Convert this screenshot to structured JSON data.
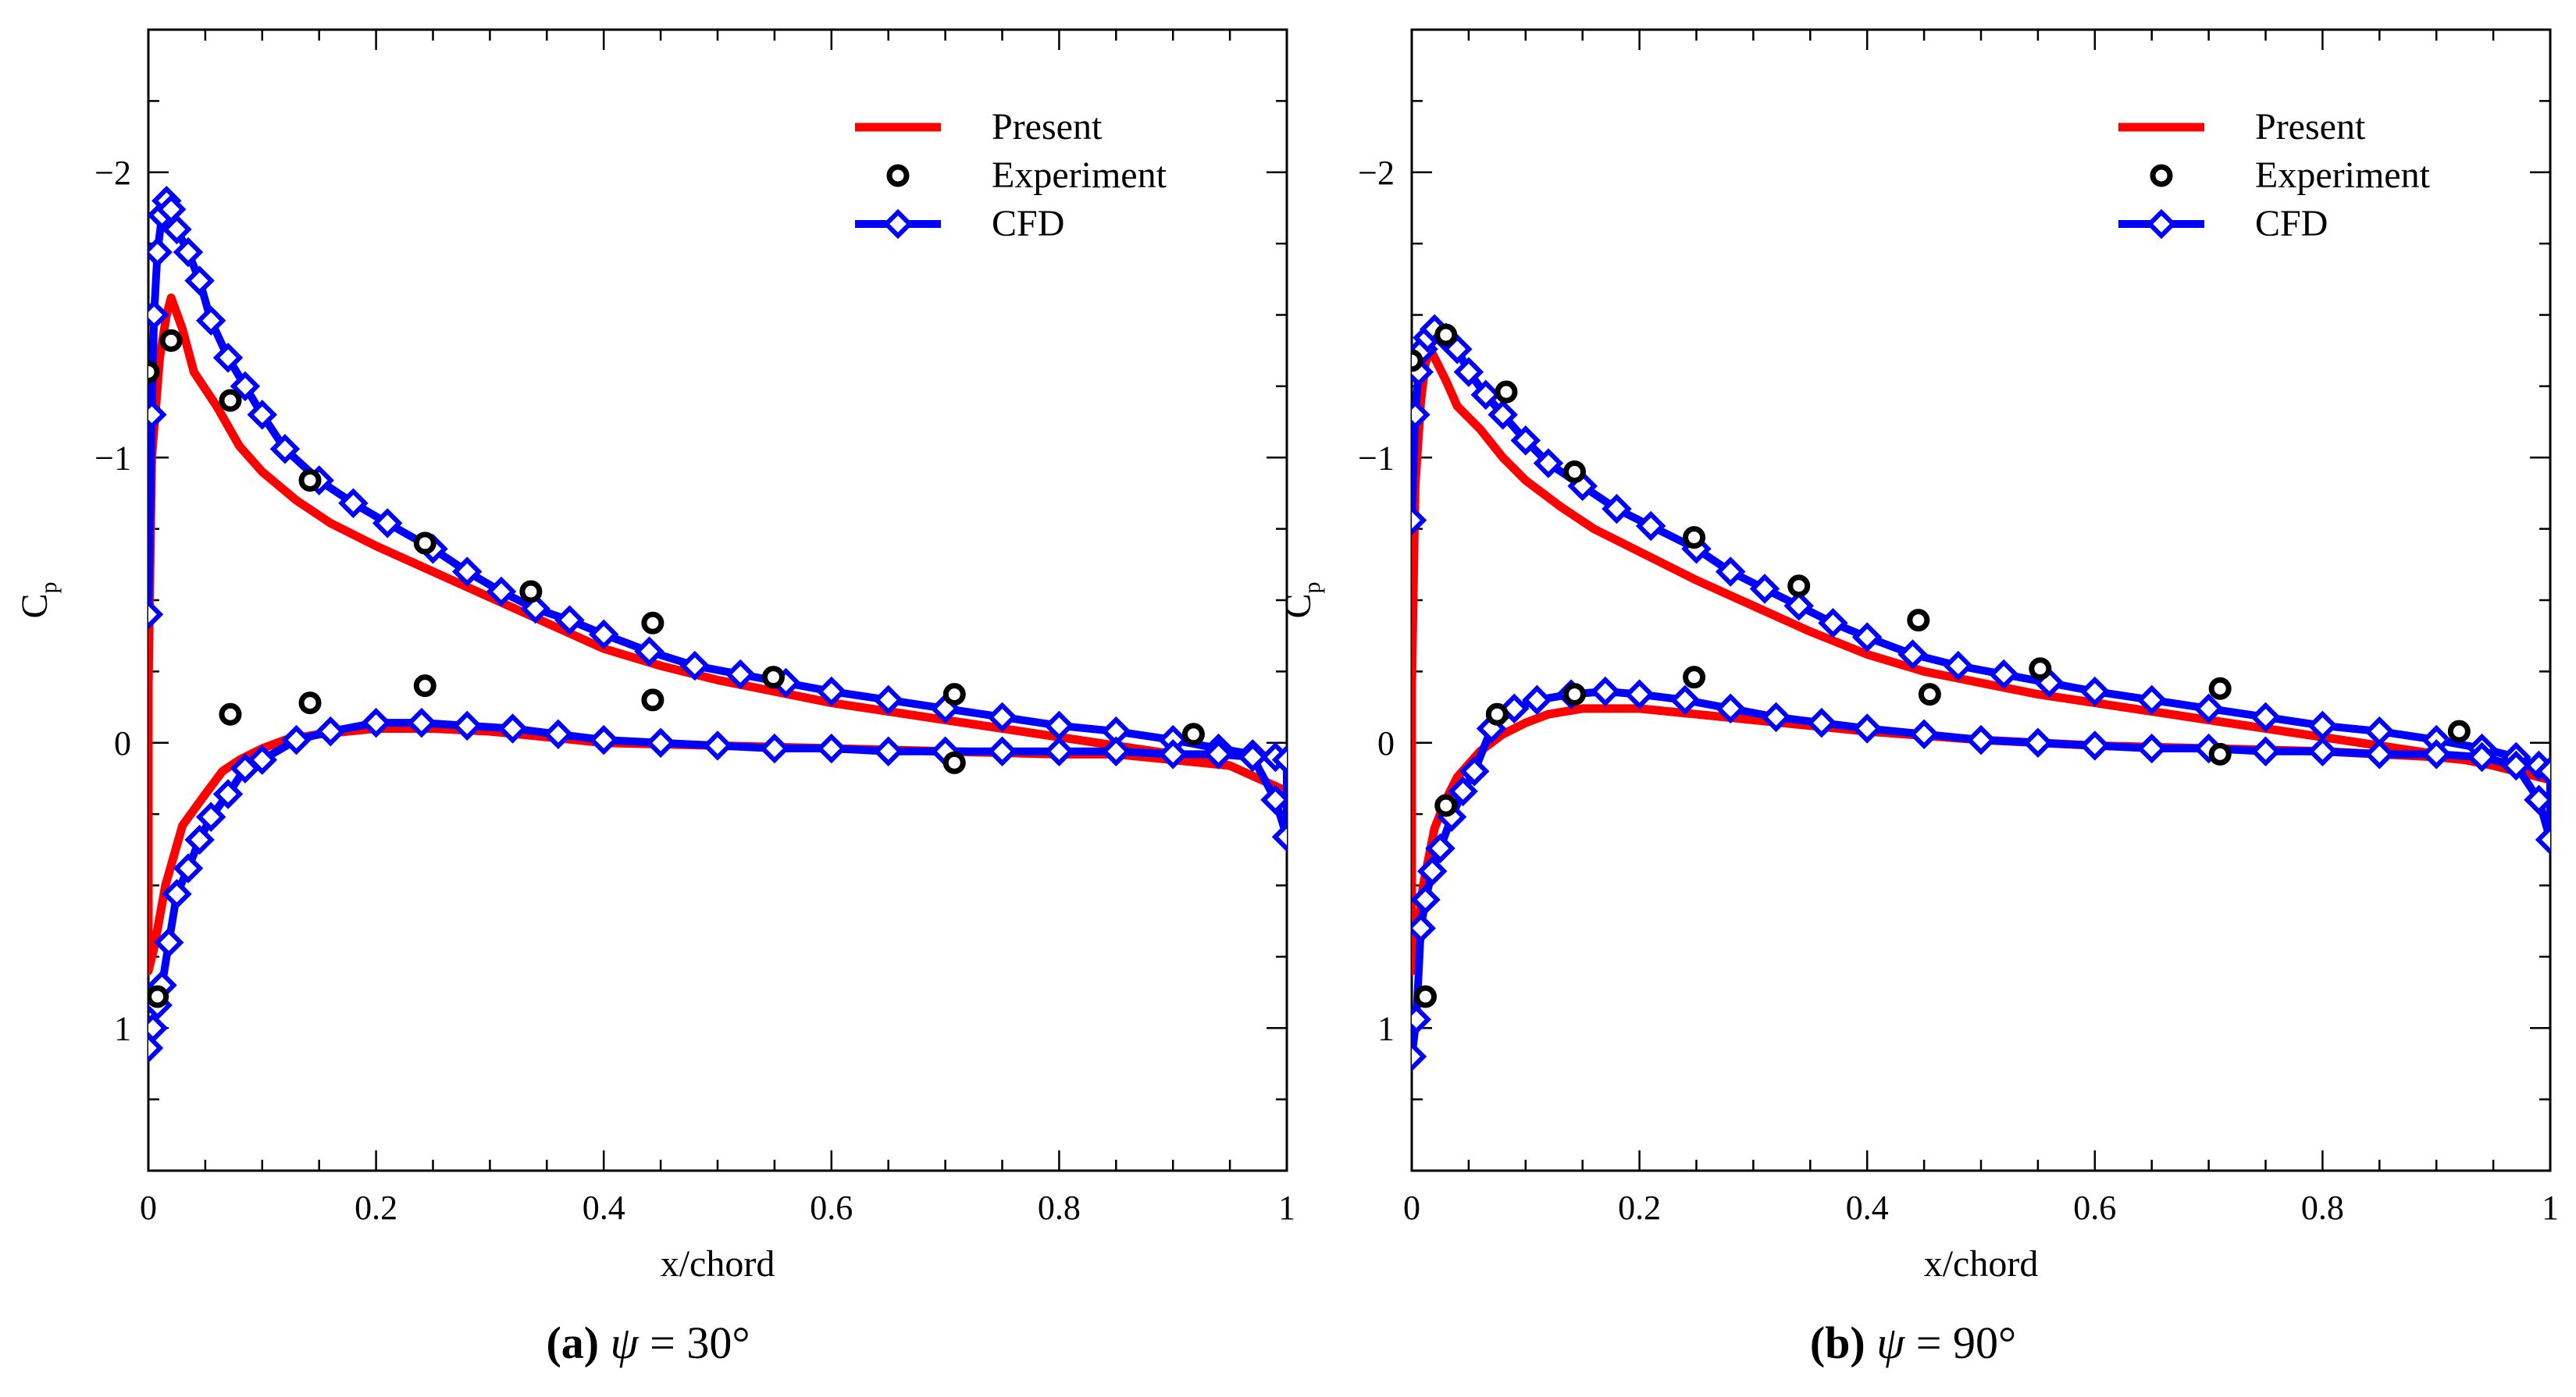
{
  "colors": {
    "present": "#ff0000",
    "experiment": "#000000",
    "cfd": "#0000ff",
    "axes": "#000000"
  },
  "legend": {
    "present": "Present",
    "experiment": "Experiment",
    "cfd": "CFD"
  },
  "chart_data": [
    {
      "type": "line",
      "caption": {
        "letter": "(a)",
        "symbol": "ψ",
        "rest": " = 30°"
      },
      "xlabel": "x/chord",
      "ylabel_main": "C",
      "ylabel_sub": "p",
      "xlim": [
        0,
        1
      ],
      "ylim": [
        1.5,
        -2.5
      ],
      "xticks": [
        0,
        0.2,
        0.4,
        0.6,
        0.8,
        1
      ],
      "xtick_labels": [
        "0",
        "0.2",
        "0.4",
        "0.6",
        "0.8",
        "1"
      ],
      "yticks": [
        -2,
        -1,
        0,
        1
      ],
      "ytick_labels": [
        "−2",
        "−1",
        "0",
        "1"
      ],
      "legend_position": "top-right",
      "series": [
        {
          "name": "Present",
          "kind": "line",
          "x": [
            0.0,
            0.0,
            0.003,
            0.01,
            0.016,
            0.02,
            0.03,
            0.04,
            0.06,
            0.08,
            0.1,
            0.13,
            0.16,
            0.2,
            0.25,
            0.3,
            0.35,
            0.4,
            0.45,
            0.5,
            0.55,
            0.6,
            0.65,
            0.7,
            0.75,
            0.8,
            0.85,
            0.9,
            0.95,
            1.0,
            1.0,
            0.95,
            0.9,
            0.85,
            0.8,
            0.7,
            0.6,
            0.5,
            0.4,
            0.35,
            0.3,
            0.25,
            0.2,
            0.15,
            0.12,
            0.1,
            0.08,
            0.065,
            0.05,
            0.03,
            0.015,
            0.005,
            0.0
          ],
          "y": [
            0.8,
            -0.2,
            -1.0,
            -1.35,
            -1.5,
            -1.56,
            -1.45,
            -1.3,
            -1.18,
            -1.04,
            -0.95,
            -0.85,
            -0.77,
            -0.69,
            -0.6,
            -0.51,
            -0.42,
            -0.33,
            -0.27,
            -0.22,
            -0.18,
            -0.14,
            -0.11,
            -0.08,
            -0.05,
            -0.02,
            0.01,
            0.04,
            0.08,
            0.17,
            0.17,
            0.08,
            0.06,
            0.04,
            0.04,
            0.03,
            0.02,
            0.01,
            0.0,
            -0.02,
            -0.04,
            -0.05,
            -0.05,
            -0.03,
            -0.01,
            0.02,
            0.06,
            0.1,
            0.18,
            0.29,
            0.5,
            0.72,
            0.8
          ]
        },
        {
          "name": "Experiment",
          "kind": "scatter",
          "x": [
            0.0,
            0.008,
            0.02,
            0.072,
            0.072,
            0.142,
            0.142,
            0.243,
            0.243,
            0.336,
            0.443,
            0.443,
            0.549,
            0.708,
            0.708,
            0.918
          ],
          "y": [
            -1.3,
            0.89,
            -1.41,
            -1.2,
            -0.1,
            -0.92,
            -0.14,
            -0.7,
            -0.2,
            -0.53,
            -0.42,
            -0.15,
            -0.23,
            -0.17,
            0.07,
            -0.03
          ]
        },
        {
          "name": "CFD",
          "kind": "line-markers",
          "x": [
            0.0,
            0.003,
            0.005,
            0.008,
            0.012,
            0.016,
            0.02,
            0.025,
            0.035,
            0.045,
            0.055,
            0.07,
            0.085,
            0.1,
            0.12,
            0.15,
            0.18,
            0.21,
            0.25,
            0.28,
            0.31,
            0.34,
            0.37,
            0.4,
            0.44,
            0.48,
            0.52,
            0.56,
            0.6,
            0.65,
            0.7,
            0.75,
            0.8,
            0.85,
            0.9,
            0.94,
            0.97,
            0.99,
            1.0,
            1.0,
            0.99,
            0.97,
            0.94,
            0.9,
            0.85,
            0.8,
            0.75,
            0.7,
            0.65,
            0.6,
            0.55,
            0.5,
            0.45,
            0.4,
            0.36,
            0.32,
            0.28,
            0.24,
            0.2,
            0.16,
            0.13,
            0.1,
            0.085,
            0.07,
            0.055,
            0.045,
            0.035,
            0.025,
            0.018,
            0.012,
            0.008,
            0.004,
            0.0
          ],
          "y": [
            -0.45,
            -1.15,
            -1.5,
            -1.72,
            -1.85,
            -1.9,
            -1.87,
            -1.8,
            -1.72,
            -1.62,
            -1.48,
            -1.35,
            -1.25,
            -1.15,
            -1.03,
            -0.92,
            -0.84,
            -0.77,
            -0.68,
            -0.6,
            -0.53,
            -0.47,
            -0.43,
            -0.38,
            -0.32,
            -0.27,
            -0.24,
            -0.21,
            -0.18,
            -0.15,
            -0.12,
            -0.09,
            -0.06,
            -0.04,
            -0.01,
            0.02,
            0.04,
            0.05,
            0.06,
            0.33,
            0.2,
            0.05,
            0.04,
            0.04,
            0.03,
            0.03,
            0.03,
            0.03,
            0.03,
            0.02,
            0.02,
            0.01,
            0.0,
            -0.01,
            -0.03,
            -0.05,
            -0.06,
            -0.07,
            -0.07,
            -0.04,
            -0.01,
            0.06,
            0.09,
            0.18,
            0.26,
            0.34,
            0.44,
            0.53,
            0.7,
            0.85,
            0.92,
            1.0,
            1.07
          ]
        }
      ]
    },
    {
      "type": "line",
      "caption": {
        "letter": "(b)",
        "symbol": "ψ",
        "rest": " = 90°"
      },
      "xlabel": "x/chord",
      "ylabel_main": "C",
      "ylabel_sub": "p",
      "xlim": [
        0,
        1
      ],
      "ylim": [
        1.5,
        -2.5
      ],
      "xticks": [
        0,
        0.2,
        0.4,
        0.6,
        0.8,
        1
      ],
      "xtick_labels": [
        "0",
        "0.2",
        "0.4",
        "0.6",
        "0.8",
        "1"
      ],
      "yticks": [
        -2,
        -1,
        0,
        1
      ],
      "ytick_labels": [
        "−2",
        "−1",
        "0",
        "1"
      ],
      "legend_position": "top-right",
      "series": [
        {
          "name": "Present",
          "kind": "line",
          "x": [
            0.0,
            0.0,
            0.003,
            0.008,
            0.012,
            0.016,
            0.02,
            0.03,
            0.04,
            0.06,
            0.08,
            0.1,
            0.13,
            0.16,
            0.2,
            0.25,
            0.3,
            0.35,
            0.4,
            0.45,
            0.5,
            0.55,
            0.6,
            0.65,
            0.7,
            0.75,
            0.8,
            0.85,
            0.9,
            0.95,
            1.0,
            1.0,
            0.95,
            0.9,
            0.85,
            0.8,
            0.7,
            0.6,
            0.5,
            0.4,
            0.35,
            0.3,
            0.25,
            0.2,
            0.15,
            0.12,
            0.1,
            0.08,
            0.06,
            0.04,
            0.03,
            0.02,
            0.01,
            0.004,
            0.0
          ],
          "y": [
            0.8,
            -0.2,
            -0.9,
            -1.2,
            -1.33,
            -1.38,
            -1.35,
            -1.27,
            -1.18,
            -1.1,
            -1.0,
            -0.92,
            -0.83,
            -0.75,
            -0.67,
            -0.57,
            -0.48,
            -0.39,
            -0.31,
            -0.25,
            -0.21,
            -0.17,
            -0.14,
            -0.11,
            -0.08,
            -0.05,
            -0.02,
            0.01,
            0.04,
            0.08,
            0.13,
            0.13,
            0.07,
            0.05,
            0.04,
            0.03,
            0.02,
            0.01,
            -0.01,
            -0.04,
            -0.06,
            -0.08,
            -0.1,
            -0.12,
            -0.12,
            -0.1,
            -0.07,
            -0.03,
            0.03,
            0.12,
            0.2,
            0.3,
            0.5,
            0.72,
            0.8
          ]
        },
        {
          "name": "Experiment",
          "kind": "scatter",
          "x": [
            0.0,
            0.012,
            0.03,
            0.03,
            0.075,
            0.083,
            0.143,
            0.143,
            0.248,
            0.248,
            0.34,
            0.445,
            0.455,
            0.552,
            0.71,
            0.71,
            0.92
          ],
          "y": [
            -1.34,
            0.89,
            -1.43,
            0.22,
            -0.1,
            -1.23,
            -0.95,
            -0.17,
            -0.72,
            -0.23,
            -0.55,
            -0.43,
            -0.17,
            -0.26,
            -0.19,
            0.04,
            -0.04
          ]
        },
        {
          "name": "CFD",
          "kind": "line-markers",
          "x": [
            0.0,
            0.003,
            0.006,
            0.01,
            0.014,
            0.02,
            0.03,
            0.04,
            0.05,
            0.065,
            0.08,
            0.1,
            0.12,
            0.15,
            0.18,
            0.21,
            0.25,
            0.28,
            0.31,
            0.34,
            0.37,
            0.4,
            0.44,
            0.48,
            0.52,
            0.56,
            0.6,
            0.65,
            0.7,
            0.75,
            0.8,
            0.85,
            0.9,
            0.94,
            0.97,
            0.99,
            1.0,
            1.0,
            0.99,
            0.97,
            0.94,
            0.9,
            0.85,
            0.8,
            0.75,
            0.7,
            0.65,
            0.6,
            0.55,
            0.5,
            0.45,
            0.4,
            0.36,
            0.32,
            0.28,
            0.24,
            0.2,
            0.17,
            0.14,
            0.11,
            0.09,
            0.07,
            0.055,
            0.045,
            0.035,
            0.025,
            0.018,
            0.012,
            0.008,
            0.004,
            0.0
          ],
          "y": [
            -0.78,
            -1.15,
            -1.3,
            -1.38,
            -1.42,
            -1.45,
            -1.42,
            -1.38,
            -1.3,
            -1.22,
            -1.15,
            -1.06,
            -0.98,
            -0.9,
            -0.82,
            -0.76,
            -0.68,
            -0.6,
            -0.54,
            -0.48,
            -0.42,
            -0.37,
            -0.31,
            -0.27,
            -0.24,
            -0.21,
            -0.18,
            -0.15,
            -0.12,
            -0.09,
            -0.06,
            -0.04,
            -0.01,
            0.02,
            0.05,
            0.08,
            0.1,
            0.34,
            0.2,
            0.08,
            0.05,
            0.04,
            0.04,
            0.03,
            0.03,
            0.02,
            0.02,
            0.01,
            0.0,
            -0.01,
            -0.03,
            -0.05,
            -0.07,
            -0.09,
            -0.12,
            -0.15,
            -0.17,
            -0.18,
            -0.17,
            -0.15,
            -0.12,
            -0.05,
            0.1,
            0.17,
            0.26,
            0.37,
            0.45,
            0.55,
            0.65,
            0.97,
            1.1
          ]
        }
      ]
    }
  ]
}
